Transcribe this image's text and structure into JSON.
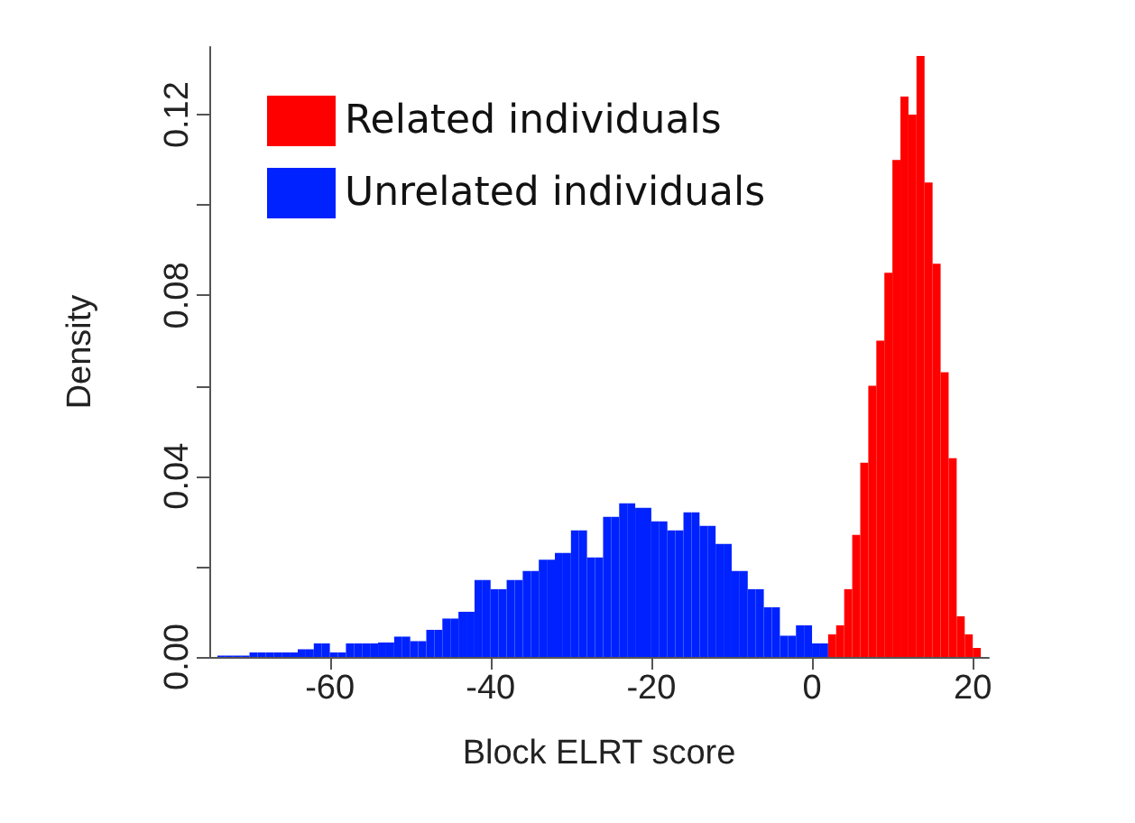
{
  "chart_data": {
    "type": "histogram",
    "xlabel": "Block ELRT score",
    "ylabel": "Density",
    "xlim": [
      -75,
      22
    ],
    "ylim": [
      0,
      0.135
    ],
    "xticks": [
      -60,
      -40,
      -20,
      0,
      20
    ],
    "yticks": [
      {
        "value": 0,
        "label": "0.00"
      },
      {
        "value": 0.02,
        "label": null
      },
      0.04,
      {
        "value": 0.06,
        "label": null
      },
      0.08,
      {
        "value": 0.1,
        "label": null
      },
      0.12
    ],
    "legend": "top left",
    "grid": false,
    "bins": [
      -74,
      -73,
      -72,
      -71,
      -70,
      -69,
      -68,
      -67,
      -66,
      -65,
      -64,
      -63,
      -62,
      -61,
      -60,
      -59,
      -58,
      -57,
      -56,
      -55,
      -54,
      -53,
      -52,
      -51,
      -50,
      -49,
      -48,
      -47,
      -46,
      -45,
      -44,
      -43,
      -42,
      -41,
      -40,
      -39,
      -38,
      -37,
      -36,
      -35,
      -34,
      -33,
      -32,
      -31,
      -30,
      -29,
      -28,
      -27,
      -26,
      -25,
      -24,
      -23,
      -22,
      -21,
      -20,
      -19,
      -18,
      -17,
      -16,
      -15,
      -14,
      -13,
      -12,
      -11,
      -10,
      -9,
      -8,
      -7,
      -6,
      -5,
      -4,
      -3,
      -2,
      -1,
      0,
      1,
      2,
      3,
      4,
      5,
      6,
      7,
      8,
      9,
      10,
      11,
      12,
      13,
      14,
      15,
      16,
      17,
      18,
      19,
      20,
      21
    ],
    "series": [
      {
        "name": "Unrelated individuals",
        "color": "#0022ff",
        "values": [
          0.0003,
          0.0003,
          0.0003,
          0.0003,
          0.001,
          0.001,
          0.001,
          0.001,
          0.001,
          0.001,
          0.0017,
          0.0017,
          0.003,
          0.003,
          0.001,
          0.001,
          0.003,
          0.003,
          0.003,
          0.003,
          0.0032,
          0.0032,
          0.0045,
          0.0045,
          0.0035,
          0.0035,
          0.006,
          0.006,
          0.0085,
          0.0085,
          0.01,
          0.01,
          0.017,
          0.017,
          0.015,
          0.015,
          0.017,
          0.017,
          0.019,
          0.019,
          0.0215,
          0.0215,
          0.023,
          0.023,
          0.028,
          0.028,
          0.022,
          0.022,
          0.031,
          0.031,
          0.034,
          0.034,
          0.033,
          0.033,
          0.03,
          0.03,
          0.028,
          0.028,
          0.032,
          0.032,
          0.029,
          0.029,
          0.025,
          0.025,
          0.019,
          0.019,
          0.015,
          0.015,
          0.011,
          0.011,
          0.0047,
          0.0047,
          0.007,
          0.007,
          0.003,
          0.003,
          null,
          null,
          null,
          null,
          null,
          null,
          null,
          null,
          null,
          null,
          null,
          null,
          null,
          null,
          null,
          null,
          null,
          null,
          null
        ]
      },
      {
        "name": "Related individuals",
        "color": "#ff0000",
        "values": [
          null,
          null,
          null,
          null,
          null,
          null,
          null,
          null,
          null,
          null,
          null,
          null,
          null,
          null,
          null,
          null,
          null,
          null,
          null,
          null,
          null,
          null,
          null,
          null,
          null,
          null,
          null,
          null,
          null,
          null,
          null,
          null,
          null,
          null,
          null,
          null,
          null,
          null,
          null,
          null,
          null,
          null,
          null,
          null,
          null,
          null,
          null,
          null,
          null,
          null,
          null,
          null,
          null,
          null,
          null,
          null,
          null,
          null,
          null,
          null,
          null,
          null,
          null,
          null,
          null,
          null,
          null,
          null,
          null,
          null,
          null,
          null,
          null,
          null,
          null,
          null,
          0.005,
          0.007,
          0.015,
          0.027,
          0.043,
          0.06,
          0.07,
          0.085,
          0.11,
          0.124,
          0.12,
          0.133,
          0.105,
          0.087,
          0.063,
          0.044,
          0.009,
          0.005,
          0.002
        ]
      }
    ]
  }
}
